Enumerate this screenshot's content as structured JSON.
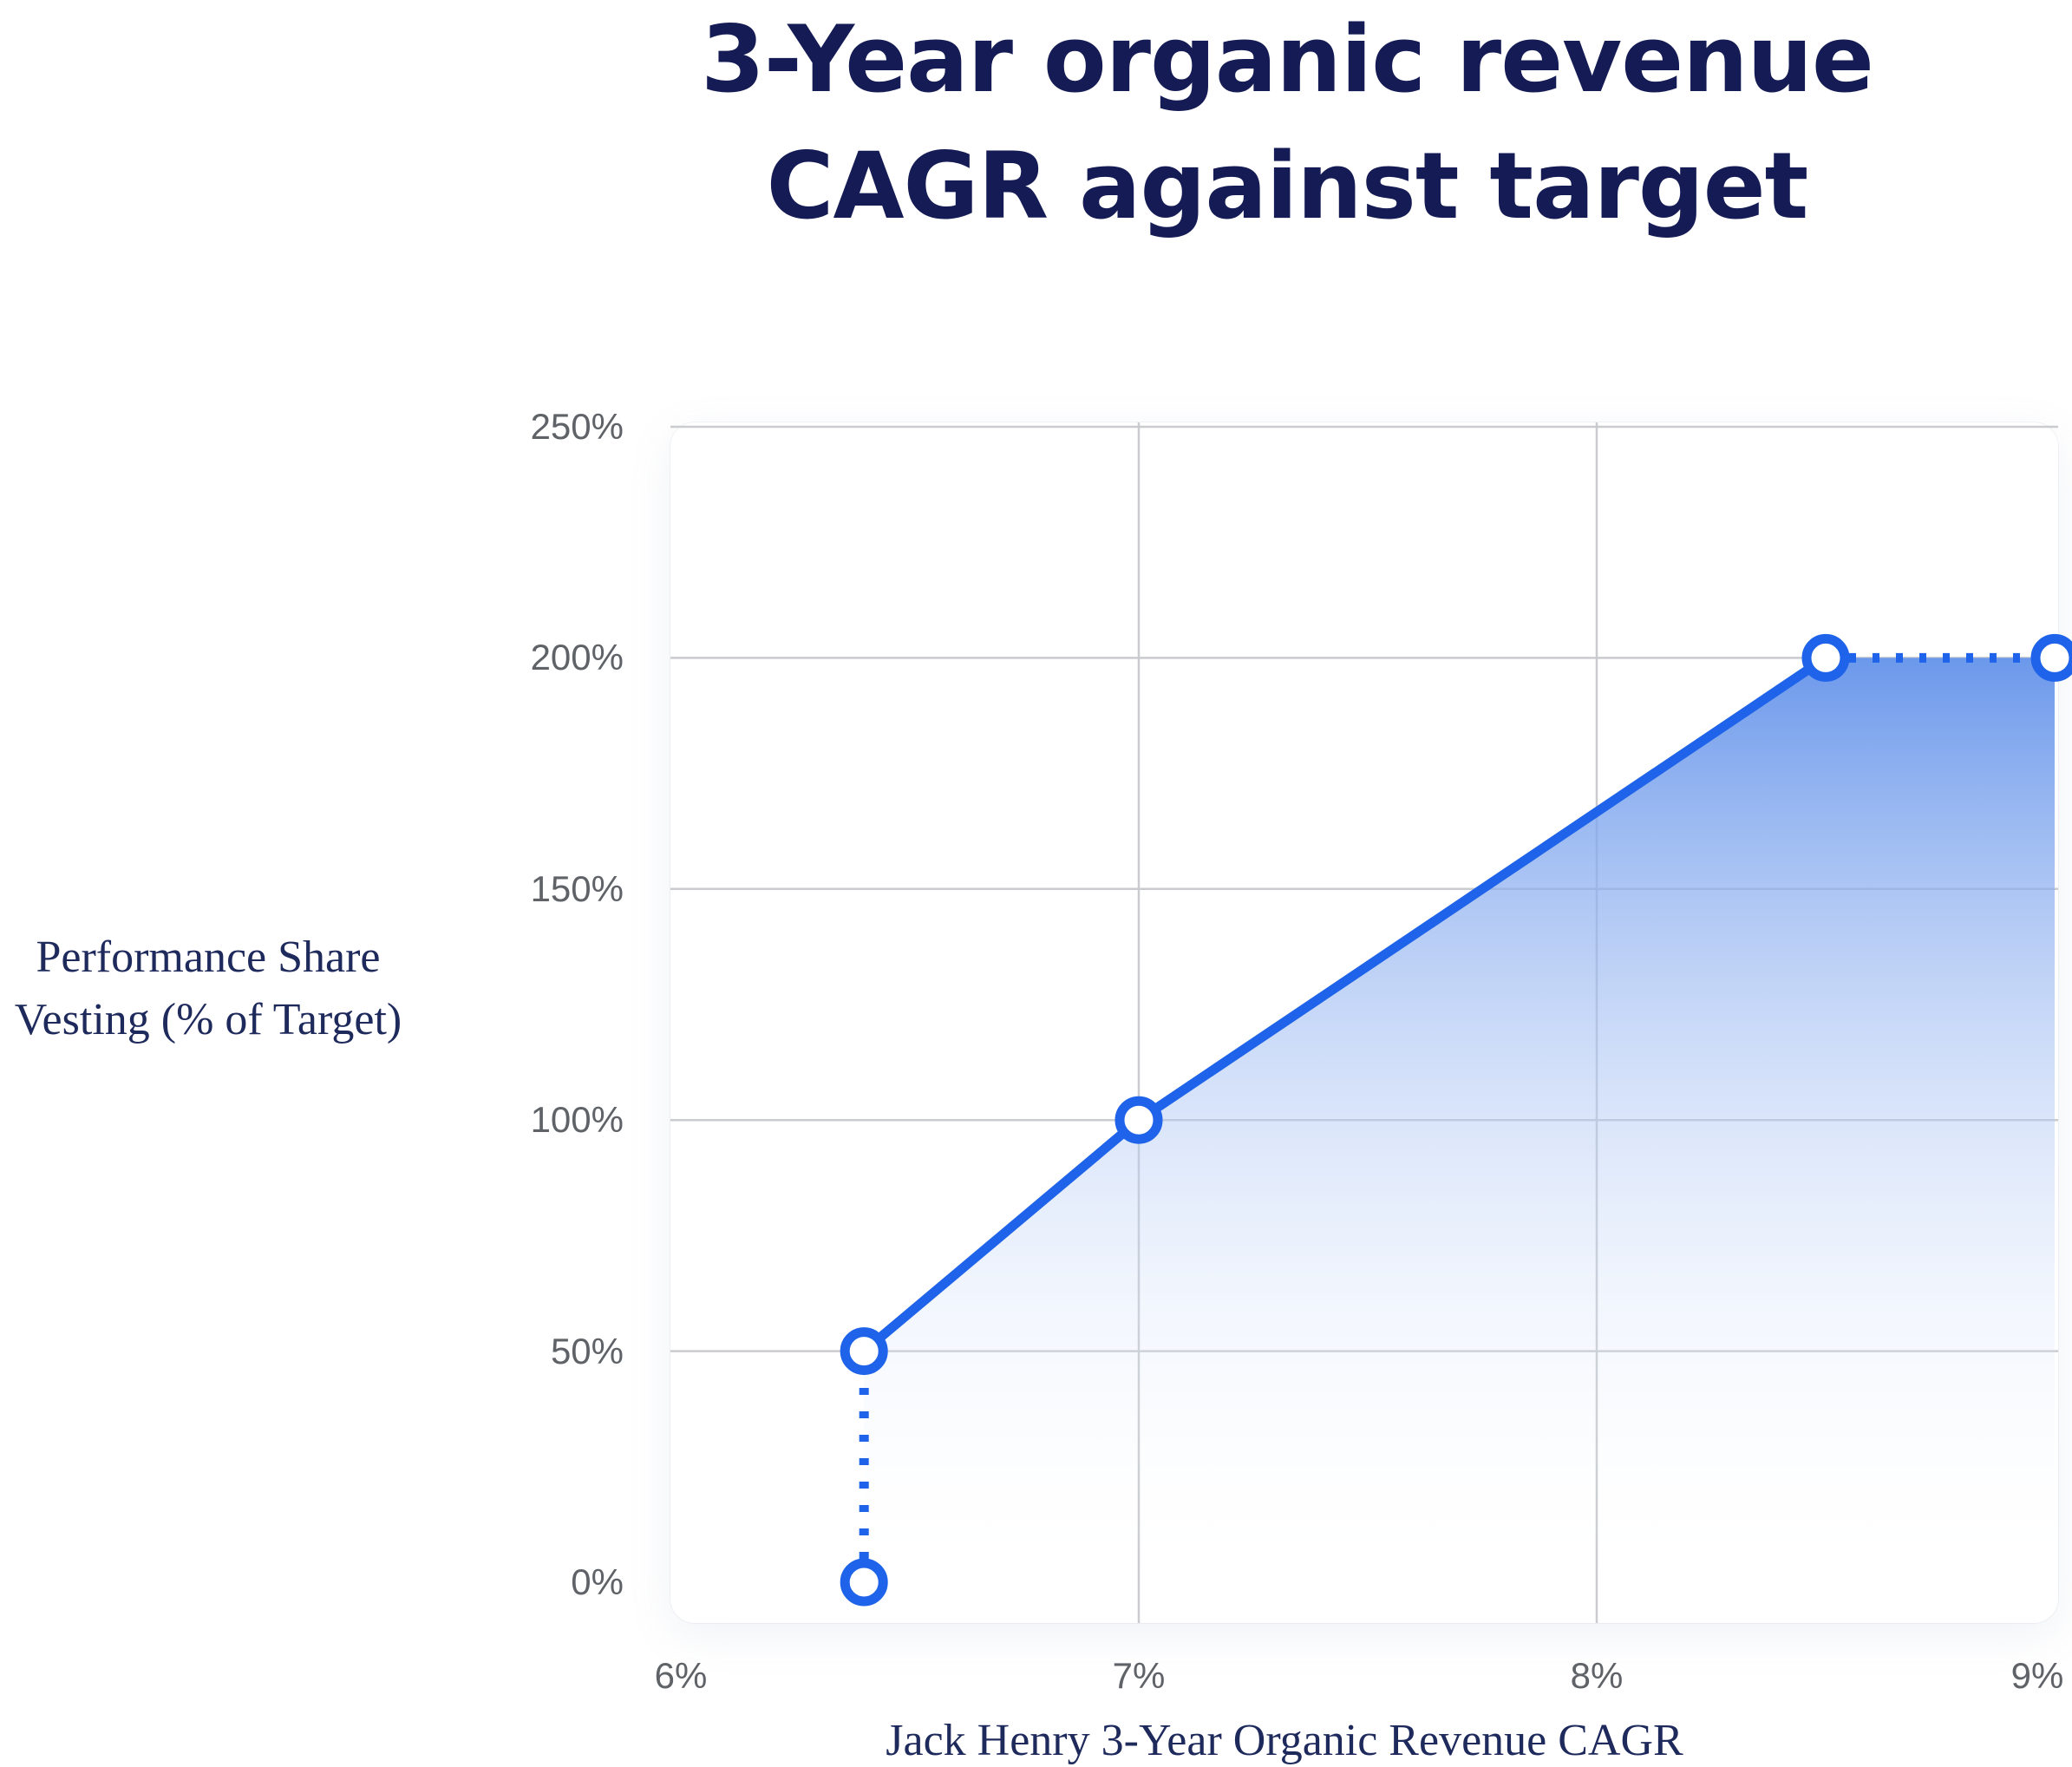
{
  "title": {
    "line1": "3-Year organic revenue",
    "line2": "CAGR against target"
  },
  "axes": {
    "y_label_line1": "Performance Share",
    "y_label_line2": "Vesting (% of Target)",
    "x_label": "Jack Henry 3-Year Organic Revenue CAGR"
  },
  "colors": {
    "title_text": "#151b54",
    "axis_label_text": "#1e2a5c",
    "tick_text": "#5f6368",
    "grid_line": "#c9cbce",
    "series_line": "#1e63e9",
    "marker_fill": "#ffffff",
    "area_gradient_top": "#6493ea",
    "area_gradient_bottom": "#ffffff",
    "card_background": "#ffffff"
  },
  "chart_data": {
    "type": "line",
    "title": "3-Year organic revenue CAGR against target",
    "xlabel": "Jack Henry 3-Year Organic Revenue CAGR",
    "ylabel": "Performance Share Vesting (% of Target)",
    "xlim": [
      6,
      9
    ],
    "ylim": [
      0,
      250
    ],
    "grid": true,
    "x_ticks": [
      {
        "value": 6,
        "label": "6%"
      },
      {
        "value": 7,
        "label": "7%"
      },
      {
        "value": 8,
        "label": "8%"
      },
      {
        "value": 9,
        "label": "9%"
      }
    ],
    "y_ticks": [
      {
        "value": 0,
        "label": "0%"
      },
      {
        "value": 50,
        "label": "50%"
      },
      {
        "value": 100,
        "label": "100%"
      },
      {
        "value": 150,
        "label": "150%"
      },
      {
        "value": 200,
        "label": "200%"
      },
      {
        "value": 250,
        "label": "250%"
      }
    ],
    "grid_x_values": [
      7,
      8
    ],
    "grid_y_values": [
      50,
      100,
      150,
      200,
      250
    ],
    "points": [
      {
        "x": 6.4,
        "y": 0
      },
      {
        "x": 6.4,
        "y": 50
      },
      {
        "x": 7,
        "y": 100
      },
      {
        "x": 8.5,
        "y": 200
      },
      {
        "x": 9,
        "y": 200
      }
    ],
    "solid_line": [
      {
        "x": 6.4,
        "y": 50
      },
      {
        "x": 7,
        "y": 100
      },
      {
        "x": 8.5,
        "y": 200
      }
    ],
    "dotted_lines": [
      [
        {
          "x": 6.4,
          "y": 0
        },
        {
          "x": 6.4,
          "y": 50
        }
      ],
      [
        {
          "x": 8.5,
          "y": 200
        },
        {
          "x": 9,
          "y": 200
        }
      ]
    ],
    "area_polygon": [
      {
        "x": 6.4,
        "y": 50
      },
      {
        "x": 7,
        "y": 100
      },
      {
        "x": 8.5,
        "y": 200
      },
      {
        "x": 9,
        "y": 200
      },
      {
        "x": 9,
        "y": 0
      },
      {
        "x": 6.4,
        "y": 0
      }
    ]
  }
}
